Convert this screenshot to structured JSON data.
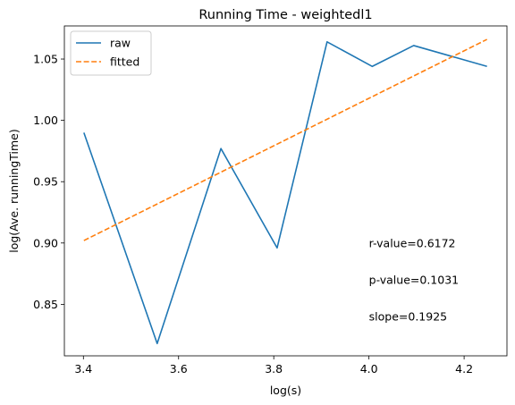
{
  "chart_data": {
    "type": "line",
    "title": "Running Time - weightedl1",
    "xlabel": "log(s)",
    "ylabel": "log(Ave. runningTime)",
    "xlim": [
      3.36,
      4.29
    ],
    "ylim": [
      0.808,
      1.077
    ],
    "xticks": [
      3.4,
      3.6,
      3.8,
      4.0,
      4.2
    ],
    "xtick_labels": [
      "3.4",
      "3.6",
      "3.8",
      "4.0",
      "4.2"
    ],
    "yticks": [
      0.85,
      0.9,
      0.95,
      1.0,
      1.05
    ],
    "ytick_labels": [
      "0.85",
      "0.90",
      "0.95",
      "1.00",
      "1.05"
    ],
    "grid": false,
    "legend_position": "top-left",
    "series": [
      {
        "name": "raw",
        "style": "solid",
        "color": "#1f77b4",
        "x": [
          3.401,
          3.555,
          3.689,
          3.807,
          3.912,
          4.007,
          4.094,
          4.248
        ],
        "y": [
          0.99,
          0.818,
          0.977,
          0.896,
          1.064,
          1.044,
          1.061,
          1.044
        ]
      },
      {
        "name": "fitted",
        "style": "dashed",
        "color": "#ff7f0e",
        "x": [
          3.401,
          4.248
        ],
        "y": [
          0.902,
          1.066
        ]
      }
    ],
    "annotations": [
      {
        "text": "r-value=0.6172",
        "x": 4.0,
        "y": 0.9
      },
      {
        "text": "p-value=0.1031",
        "x": 4.0,
        "y": 0.87
      },
      {
        "text": "slope=0.1925",
        "x": 4.0,
        "y": 0.84
      }
    ]
  }
}
